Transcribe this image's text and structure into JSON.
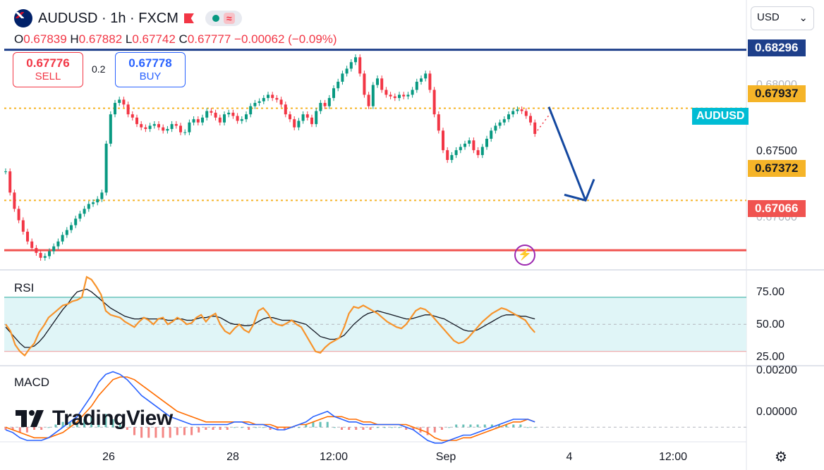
{
  "header": {
    "symbol": "AUDUSD",
    "separator": "·",
    "interval": "1h",
    "exchange": "FXCM",
    "title_full": "AUDUSD · 1h · FXCM",
    "icons": [
      "flag-au-icon",
      "red-flag-icon",
      "market-open-dot-icon",
      "waves-icon"
    ]
  },
  "ohlc": {
    "o_label": "O",
    "o": "0.67839",
    "h_label": "H",
    "h": "0.67882",
    "l_label": "L",
    "l": "0.67742",
    "c_label": "C",
    "c": "0.67777",
    "change": "−0.00062 (−0.09%)"
  },
  "trade": {
    "sell_price": "0.67776",
    "sell_label": "SELL",
    "buy_price": "0.67778",
    "buy_label": "BUY",
    "spread": "0.2"
  },
  "currency_select": {
    "value": "USD",
    "caret": "⌄"
  },
  "price_tags": [
    {
      "value": "0.68296",
      "color": "#1e3f8a",
      "text_color": "#ffffff"
    },
    {
      "value": "0.67937",
      "color": "#f5b428",
      "text_color": "#131722"
    },
    {
      "value": "0.67372",
      "color": "#f5b428",
      "text_color": "#131722"
    },
    {
      "value": "0.67066",
      "color": "#f05350",
      "text_color": "#ffffff"
    }
  ],
  "axis_labels": [
    "0.68000",
    "0.67500",
    "0.67000"
  ],
  "symbol_tag": "AUDUSD",
  "colors": {
    "up": "#089981",
    "down": "#f23645",
    "rsi": "#f7932b",
    "rsi_ma": "#131722",
    "rsi_band": "#e0f5f7",
    "macd": "#2962ff",
    "signal": "#ff6d00",
    "arrow": "#1448a0"
  },
  "chart_data": [
    {
      "type": "candlestick",
      "title": "AUDUSD · 1h · FXCM",
      "x_ticks": [
        "26",
        "28",
        "12:00",
        "Sep",
        "4",
        "12:00"
      ],
      "ylim": [
        0.6695,
        0.6845
      ],
      "horizontal_levels": [
        0.68296,
        0.67937,
        0.67372,
        0.67066
      ],
      "close_series": [
        0.6755,
        0.6742,
        0.6732,
        0.6725,
        0.6718,
        0.6712,
        0.6708,
        0.6705,
        0.6702,
        0.6703,
        0.6706,
        0.6709,
        0.6712,
        0.6716,
        0.6719,
        0.6722,
        0.6726,
        0.6729,
        0.6732,
        0.6735,
        0.6736,
        0.6738,
        0.6742,
        0.6772,
        0.679,
        0.6797,
        0.6799,
        0.6796,
        0.679,
        0.6788,
        0.6784,
        0.6782,
        0.6781,
        0.6783,
        0.6784,
        0.6782,
        0.678,
        0.6781,
        0.6784,
        0.6783,
        0.6779,
        0.6779,
        0.6785,
        0.6787,
        0.6785,
        0.6788,
        0.6792,
        0.6791,
        0.6788,
        0.6785,
        0.679,
        0.6791,
        0.6789,
        0.6786,
        0.6787,
        0.679,
        0.6795,
        0.6797,
        0.6798,
        0.68,
        0.6802,
        0.68,
        0.6799,
        0.6796,
        0.679,
        0.6787,
        0.6782,
        0.6786,
        0.679,
        0.6788,
        0.6784,
        0.6792,
        0.6797,
        0.6795,
        0.68,
        0.6806,
        0.681,
        0.6815,
        0.6818,
        0.6822,
        0.6825,
        0.6815,
        0.6802,
        0.6795,
        0.6808,
        0.6812,
        0.6805,
        0.6802,
        0.6801,
        0.68,
        0.6802,
        0.6801,
        0.6802,
        0.6805,
        0.681,
        0.6812,
        0.6815,
        0.6805,
        0.679,
        0.678,
        0.6768,
        0.6762,
        0.6765,
        0.6768,
        0.677,
        0.6772,
        0.6774,
        0.6768,
        0.6765,
        0.677,
        0.6775,
        0.678,
        0.6783,
        0.6785,
        0.6787,
        0.679,
        0.6792,
        0.6793,
        0.6792,
        0.6789,
        0.6785,
        0.6778
      ],
      "projection_target": 0.67372
    },
    {
      "type": "line",
      "title": "RSI",
      "ylim": [
        20,
        85
      ],
      "y_ticks": [
        "75.00",
        "50.00",
        "25.00"
      ],
      "band": [
        30,
        70
      ],
      "series": [
        {
          "name": "RSI",
          "values": [
            50,
            45,
            35,
            30,
            27,
            32,
            36,
            44,
            49,
            55,
            58,
            61,
            64,
            65,
            67,
            68,
            70,
            85,
            83,
            78,
            72,
            60,
            57,
            56,
            55,
            52,
            50,
            48,
            52,
            55,
            53,
            50,
            54,
            55,
            50,
            52,
            55,
            53,
            50,
            51,
            55,
            57,
            52,
            56,
            58,
            50,
            45,
            43,
            47,
            50,
            46,
            44,
            50,
            60,
            62,
            58,
            52,
            50,
            49,
            51,
            53,
            50,
            48,
            42,
            36,
            30,
            29,
            33,
            36,
            38,
            40,
            48,
            58,
            63,
            62,
            64,
            62,
            60,
            58,
            55,
            52,
            50,
            48,
            47,
            50,
            55,
            60,
            62,
            61,
            58,
            54,
            50,
            46,
            42,
            38,
            36,
            37,
            40,
            44,
            48,
            52,
            55,
            58,
            60,
            62,
            61,
            59,
            57,
            55,
            53,
            48,
            44
          ]
        },
        {
          "name": "RSI MA",
          "values": [
            48,
            44,
            40,
            36,
            33,
            33,
            34,
            37,
            41,
            46,
            51,
            56,
            61,
            65,
            70,
            74,
            75,
            76,
            74,
            71,
            68,
            65,
            62,
            60,
            58,
            56,
            55,
            54,
            54,
            55,
            54,
            54,
            54,
            54,
            53,
            53,
            54,
            54,
            53,
            53,
            54,
            55,
            55,
            56,
            56,
            55,
            53,
            51,
            50,
            50,
            49,
            49,
            50,
            52,
            54,
            55,
            55,
            54,
            53,
            53,
            53,
            52,
            51,
            50,
            47,
            44,
            41,
            40,
            39,
            39,
            40,
            42,
            46,
            50,
            53,
            56,
            58,
            59,
            60,
            59,
            58,
            57,
            56,
            55,
            54,
            54,
            55,
            56,
            57,
            57,
            56,
            55,
            54,
            52,
            50,
            48,
            46,
            45,
            45,
            46,
            48,
            50,
            52,
            54,
            56,
            57,
            57,
            57,
            56,
            56,
            55,
            54
          ]
        }
      ]
    },
    {
      "type": "line",
      "title": "MACD",
      "ylim": [
        -0.0005,
        0.0023
      ],
      "y_ticks": [
        "0.00200",
        "0.00000"
      ],
      "series": [
        {
          "name": "MACD",
          "values": [
            -0.0001,
            -0.0002,
            -0.0004,
            -0.0005,
            -0.0005,
            -0.0005,
            -0.0004,
            -0.0002,
            0.0,
            0.0002,
            0.0004,
            0.0008,
            0.0012,
            0.0017,
            0.002,
            0.0021,
            0.002,
            0.0018,
            0.0015,
            0.0012,
            0.001,
            0.0008,
            0.0006,
            0.0004,
            0.0003,
            0.0002,
            0.0001,
            0.0001,
            0.0001,
            0.0001,
            0.0001,
            0.0001,
            0.0002,
            0.0002,
            0.0001,
            0.0001,
            0.0001,
            0.0,
            -0.0001,
            -0.0001,
            0.0,
            0.0001,
            0.0002,
            0.0004,
            0.0005,
            0.0006,
            0.0004,
            0.0003,
            0.0002,
            0.0002,
            0.0001,
            0.0001,
            0.0001,
            0.0001,
            0.0001,
            0.0001,
            0.0,
            -0.0001,
            -0.0003,
            -0.0005,
            -0.0006,
            -0.0006,
            -0.0005,
            -0.0004,
            -0.0003,
            -0.0003,
            -0.0002,
            -0.0001,
            0.0,
            0.0001,
            0.0002,
            0.0003,
            0.0003,
            0.0003,
            0.0002
          ]
        },
        {
          "name": "Signal",
          "values": [
            0.0,
            -0.0001,
            -0.0002,
            -0.0003,
            -0.0004,
            -0.0004,
            -0.0004,
            -0.0003,
            -0.0002,
            0.0,
            0.0002,
            0.0005,
            0.0008,
            0.0012,
            0.0015,
            0.0018,
            0.0019,
            0.0019,
            0.0018,
            0.0016,
            0.0014,
            0.0012,
            0.001,
            0.0008,
            0.0006,
            0.0005,
            0.0004,
            0.0003,
            0.0002,
            0.0002,
            0.0002,
            0.0002,
            0.0002,
            0.0002,
            0.0002,
            0.0001,
            0.0001,
            0.0001,
            0.0,
            0.0,
            0.0,
            0.0001,
            0.0001,
            0.0002,
            0.0003,
            0.0004,
            0.0004,
            0.0004,
            0.0003,
            0.0003,
            0.0002,
            0.0002,
            0.0001,
            0.0001,
            0.0001,
            0.0001,
            0.0001,
            0.0,
            -0.0001,
            -0.0002,
            -0.0004,
            -0.0005,
            -0.0005,
            -0.0005,
            -0.0004,
            -0.0004,
            -0.0003,
            -0.0002,
            -0.0001,
            0.0,
            0.0001,
            0.0002,
            0.0002,
            0.0003,
            0.0002
          ]
        }
      ]
    }
  ],
  "panels": {
    "rsi_title": "RSI",
    "macd_title": "MACD"
  },
  "brand": {
    "name": "TradingView"
  }
}
